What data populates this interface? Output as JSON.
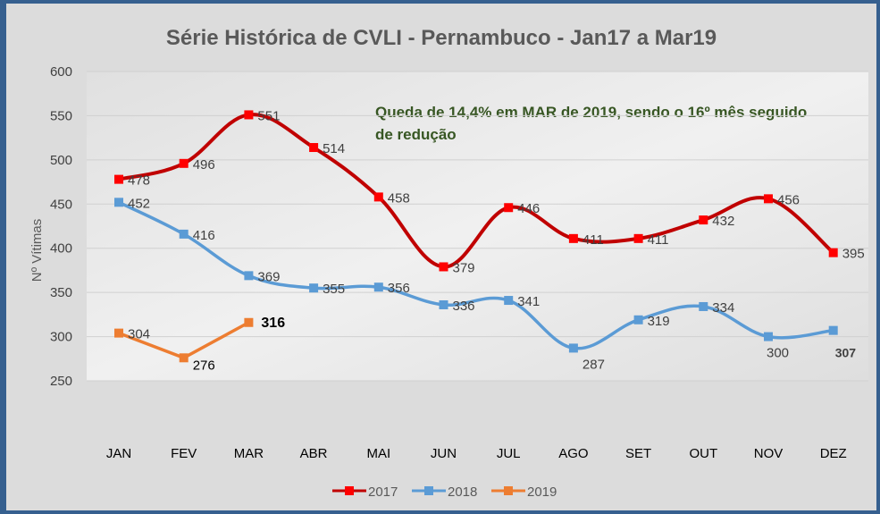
{
  "chart_data": {
    "type": "line",
    "title": "Série Histórica de CVLI - Pernambuco - Jan17 a Mar19",
    "annotation": [
      "Queda de 14,4% em MAR  de 2019, sendo o 16º mês seguido",
      "de redução"
    ],
    "xlabel": "",
    "ylabel": "Nº Vítimas",
    "ylim": [
      250,
      600
    ],
    "yticks": [
      250,
      300,
      350,
      400,
      450,
      500,
      550,
      600
    ],
    "grid": true,
    "legend_position": "bottom",
    "categories": [
      "JAN",
      "FEV",
      "MAR",
      "ABR",
      "MAI",
      "JUN",
      "JUL",
      "AGO",
      "SET",
      "OUT",
      "NOV",
      "DEZ"
    ],
    "series": [
      {
        "name": "2017",
        "color": "#c00000",
        "marker": "#ff0000",
        "values": [
          478,
          496,
          551,
          514,
          458,
          379,
          446,
          411,
          411,
          432,
          456,
          395
        ]
      },
      {
        "name": "2018",
        "color": "#5b9bd5",
        "marker": "#5b9bd5",
        "values": [
          452,
          416,
          369,
          355,
          356,
          336,
          341,
          287,
          319,
          334,
          300,
          307
        ]
      },
      {
        "name": "2019",
        "color": "#ed7d31",
        "marker": "#ed7d31",
        "values": [
          304,
          276,
          316
        ]
      }
    ]
  }
}
